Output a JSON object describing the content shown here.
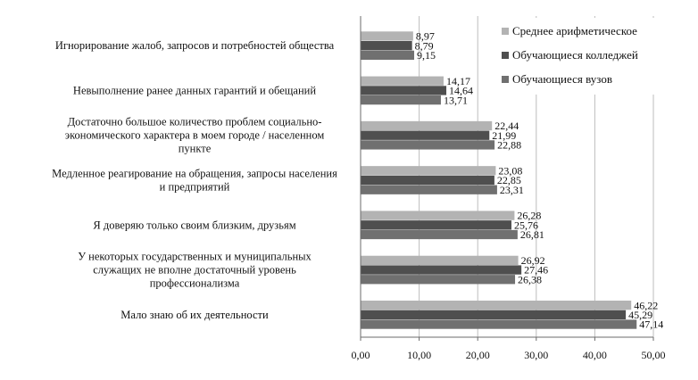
{
  "chart_data": {
    "type": "bar",
    "orientation": "horizontal",
    "categories": [
      [
        "Игнорирование жалоб, запросов и потребностей общества"
      ],
      [
        "Невыполнение ранее данных гарантий и обещаний"
      ],
      [
        "Достаточно большое количество проблем социально-",
        "экономического характера в моем городе / населенном",
        "пункте"
      ],
      [
        "Медленное реагирование на обращения, запросы населения",
        "и предприятий"
      ],
      [
        "Я доверяю только своим близким,  друзьям"
      ],
      [
        "У некоторых государственных и муниципальных",
        "служащих не вполне достаточный уровень",
        "профессионализма"
      ],
      [
        "Мало знаю об их деятельности"
      ]
    ],
    "series": [
      {
        "name": "Среднее арифметическое",
        "color": "#b3b3b3",
        "values": [
          8.97,
          14.17,
          22.44,
          23.08,
          26.28,
          26.92,
          46.22
        ],
        "labels": [
          "8,97",
          "14,17",
          "22,44",
          "23,08",
          "26,28",
          "26,92",
          "46,22"
        ]
      },
      {
        "name": "Обучающиеся колледжей",
        "color": "#4f4f4f",
        "values": [
          8.79,
          14.64,
          21.99,
          22.85,
          25.76,
          27.46,
          45.29
        ],
        "labels": [
          "8,79",
          "14,64",
          "21,99",
          "22,85",
          "25,76",
          "27,46",
          "45,29"
        ]
      },
      {
        "name": "Обучающиеся вузов",
        "color": "#707070",
        "values": [
          9.15,
          13.71,
          22.88,
          23.31,
          26.81,
          26.38,
          47.14
        ],
        "labels": [
          "9,15",
          "13,71",
          "22,88",
          "23,31",
          "26,81",
          "26,38",
          "47,14"
        ]
      }
    ],
    "xlim": [
      0,
      50
    ],
    "xticks": [
      "0,00",
      "10,00",
      "20,00",
      "30,00",
      "40,00",
      "50,00"
    ],
    "legend_position": "top-right",
    "grid": "vertical"
  }
}
